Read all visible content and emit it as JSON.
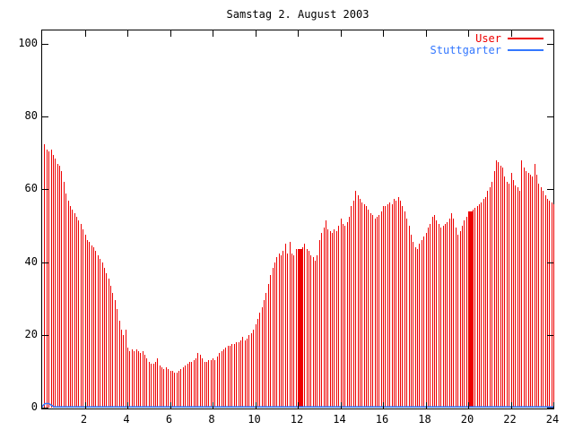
{
  "title": "Samstag 2. August 2003",
  "colors": {
    "user_red": "#ee0000",
    "stuttgarter_blue": "#3377ff",
    "axis_black": "#000000",
    "background": "#ffffff"
  },
  "chart_data": {
    "type": "bar",
    "title": "Samstag 2. August 2003",
    "xlabel": "",
    "ylabel": "",
    "xlim": [
      0,
      24
    ],
    "ylim": [
      0,
      100
    ],
    "x_ticks": [
      2,
      4,
      6,
      8,
      10,
      12,
      14,
      16,
      18,
      20,
      22,
      24
    ],
    "y_ticks": [
      0,
      20,
      40,
      60,
      80,
      100
    ],
    "grid": false,
    "legend_position": "top-right-inside",
    "series": [
      {
        "name": "User",
        "color": "#ee0000",
        "style": "impulses",
        "x_start": 0.1,
        "x_step": 0.1,
        "values": [
          72.5,
          71,
          70.5,
          71,
          69.5,
          68.5,
          67,
          66.5,
          65,
          62,
          59,
          57,
          55.5,
          54.5,
          53.5,
          52.5,
          51.5,
          50.5,
          49,
          47.5,
          46,
          45.5,
          44.5,
          44,
          43,
          42,
          41,
          40,
          38.5,
          37,
          35.5,
          33.5,
          31.5,
          29.5,
          27,
          24,
          21.5,
          20,
          21.5,
          16.5,
          15.5,
          16,
          15.5,
          16,
          15.5,
          15,
          15.5,
          14.5,
          13.5,
          12.5,
          12,
          12,
          12.5,
          13.5,
          11.5,
          11,
          10.5,
          11,
          10.5,
          10,
          10,
          9.5,
          9.5,
          10,
          10.5,
          11,
          11.5,
          12,
          12.5,
          12.5,
          13,
          13.5,
          15,
          14.5,
          13.5,
          12.5,
          12.5,
          13,
          13,
          13.5,
          13,
          14,
          15,
          15.5,
          16,
          16.5,
          17,
          17,
          17.5,
          17.5,
          18,
          18,
          18.5,
          19.5,
          18.5,
          19,
          20,
          20.5,
          21.5,
          23,
          24.5,
          26,
          27.5,
          29.5,
          31.5,
          34,
          36.5,
          38.5,
          40,
          41.5,
          42.5,
          42,
          43,
          45,
          42.5,
          45.5,
          42.5,
          42,
          43.5,
          43.5,
          43.5,
          44,
          45,
          43.5,
          43,
          42,
          41.5,
          40.5,
          42,
          46,
          48,
          49.5,
          51.5,
          49,
          48.5,
          48,
          49,
          48.5,
          50,
          52,
          50.5,
          50,
          51,
          52.5,
          55.5,
          57,
          59.5,
          58.5,
          57.5,
          56.5,
          56,
          55.5,
          54.5,
          53.5,
          53,
          52,
          52.5,
          53,
          54,
          55.5,
          55.5,
          56,
          56.5,
          56,
          57.5,
          57,
          58,
          57,
          55.5,
          54,
          52,
          50,
          47.5,
          45.5,
          44,
          43.5,
          45,
          46,
          47,
          48,
          49.5,
          50.5,
          52.5,
          53,
          51.5,
          50.5,
          49.5,
          50,
          50.5,
          51,
          52,
          53.5,
          52,
          49.5,
          47.5,
          48.5,
          50,
          51.5,
          52.5,
          54,
          54,
          54.5,
          55,
          55.5,
          56,
          56.5,
          57.5,
          58,
          59.5,
          60.5,
          62,
          65,
          68,
          67.5,
          66.5,
          66,
          63.5,
          62,
          61.5,
          64.5,
          62.5,
          61,
          60.5,
          59.5,
          68,
          66,
          65,
          64.5,
          64,
          63.5,
          67,
          64,
          61.5,
          60.5,
          59.5,
          58.5,
          57.5,
          57,
          56.5,
          56
        ],
        "extra_impulses": [
          [
            11.98,
            43.5
          ],
          [
            12.02,
            43.5
          ],
          [
            12.06,
            43.5
          ],
          [
            12.14,
            43.5
          ],
          [
            12.18,
            43.5
          ],
          [
            20.02,
            54
          ],
          [
            20.06,
            54
          ],
          [
            20.14,
            54
          ],
          [
            20.18,
            54
          ]
        ]
      },
      {
        "name": "Stuttgarter",
        "color": "#3377ff",
        "style": "line",
        "points": [
          [
            0,
            0.2
          ],
          [
            0.06,
            0.7
          ],
          [
            0.14,
            1.1
          ],
          [
            0.32,
            1.1
          ],
          [
            0.45,
            0.6
          ],
          [
            0.56,
            0.2
          ],
          [
            24,
            0.2
          ]
        ]
      }
    ]
  }
}
